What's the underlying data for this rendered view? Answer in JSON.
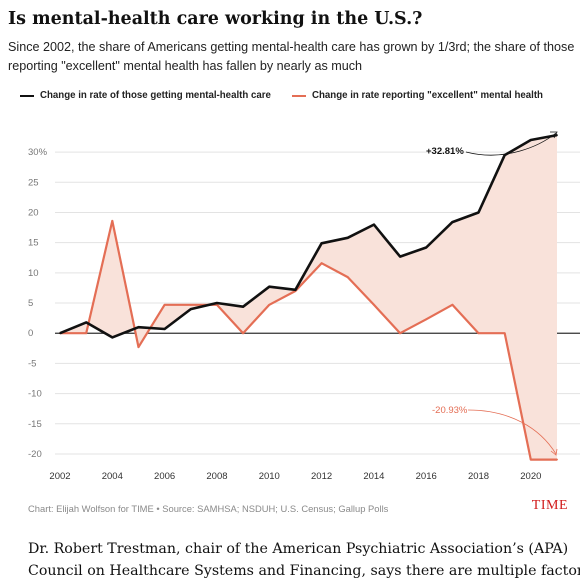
{
  "header": {
    "title": "Is mental-health care working in the U.S.?",
    "subtitle": "Since 2002, the share of Americans getting mental-health care has grown by 1/3rd; the share of those reporting \"excellent\" mental health has fallen by nearly as much"
  },
  "legend": {
    "items": [
      {
        "label": "Change in rate of those getting mental-health care",
        "color": "#111111"
      },
      {
        "label": "Change in rate reporting \"excellent\" mental health",
        "color": "#e46e55"
      }
    ]
  },
  "chart_data": {
    "type": "line",
    "x": [
      2002,
      2003,
      2004,
      2005,
      2006,
      2007,
      2008,
      2009,
      2010,
      2011,
      2012,
      2013,
      2014,
      2015,
      2016,
      2017,
      2018,
      2019,
      2020,
      2021
    ],
    "series": [
      {
        "name": "Change in rate of those getting mental-health care",
        "color": "#111111",
        "values": [
          0,
          1.8,
          -0.7,
          1.0,
          0.7,
          4.0,
          5.0,
          4.4,
          7.7,
          7.2,
          14.9,
          15.8,
          18.0,
          12.7,
          14.2,
          18.4,
          20.0,
          29.5,
          32.0,
          32.81
        ]
      },
      {
        "name": "Change in rate reporting \"excellent\" mental health",
        "color": "#e46e55",
        "values": [
          0,
          0,
          18.6,
          -2.3,
          4.7,
          4.7,
          4.7,
          0,
          4.7,
          7.0,
          11.6,
          9.3,
          4.7,
          0,
          2.3,
          4.7,
          0,
          0,
          -20.93,
          -20.93
        ]
      }
    ],
    "fill_color": "#f9e2da",
    "x_ticks": [
      "2002",
      "2004",
      "2006",
      "2008",
      "2010",
      "2012",
      "2014",
      "2016",
      "2018",
      "2020"
    ],
    "y_ticks": [
      "30%",
      "25",
      "20",
      "15",
      "10",
      "5",
      "0",
      "-5",
      "-10",
      "-15",
      "-20"
    ],
    "ylim": [
      -21,
      33
    ],
    "xlim": [
      2002,
      2021
    ],
    "annotations": [
      {
        "text": "+32.81%",
        "color": "#111111"
      },
      {
        "text": "-20.93%",
        "color": "#e46e55"
      }
    ],
    "grid": true
  },
  "footer": {
    "source": "Chart: Elijah Wolfson for TIME • Source: SAMHSA; NSDUH; U.S. Census; Gallup Polls",
    "brand": "TIME"
  },
  "article": {
    "lines": [
      "Dr. Robert Trestman, chair of the American Psychiatric Association’s (APA)",
      "Council on Healthcare Systems and Financing, says there are multiple factors"
    ]
  }
}
